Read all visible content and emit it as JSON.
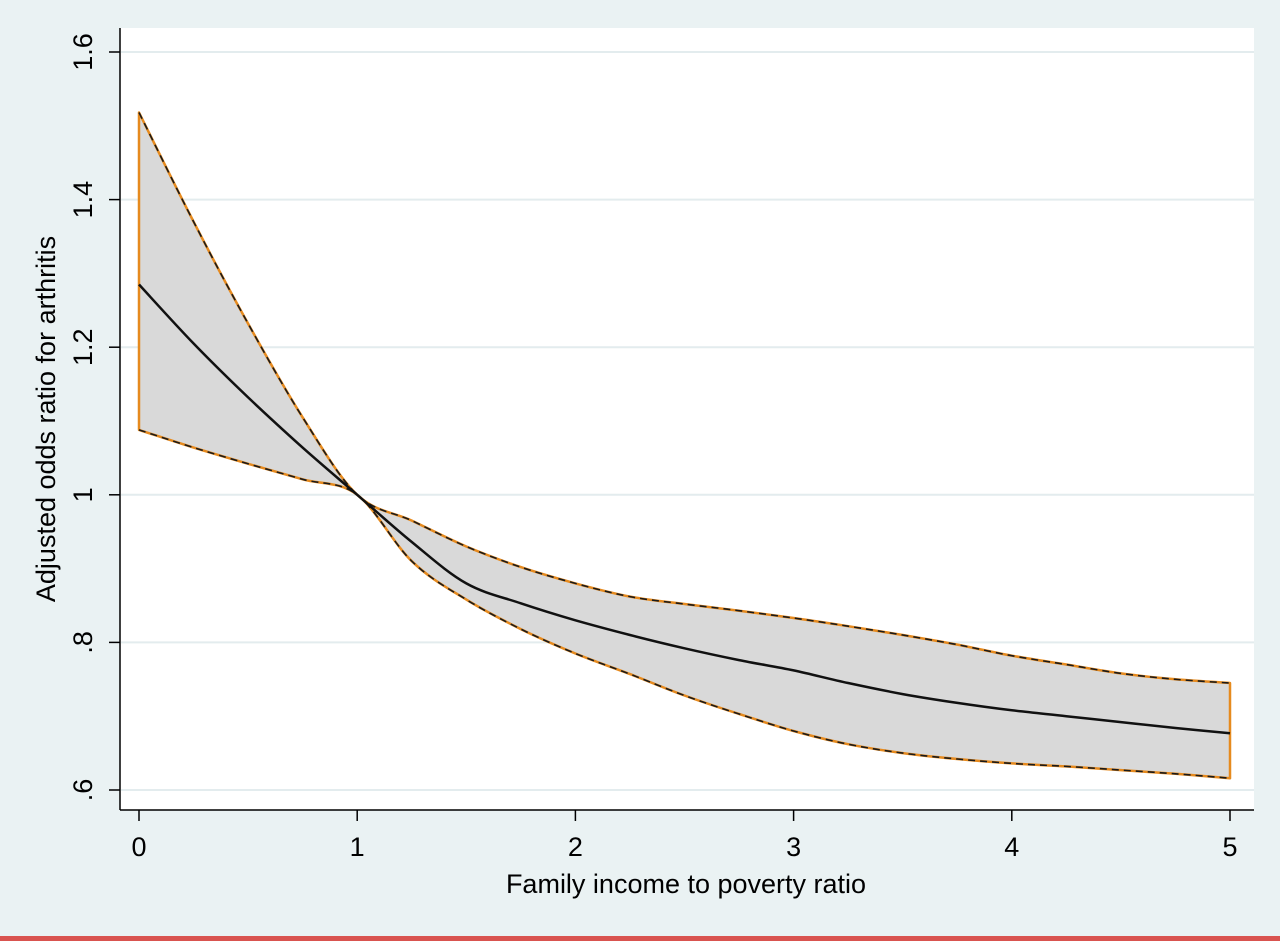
{
  "chart_data": {
    "type": "line",
    "title": "",
    "xlabel": "Family income to poverty ratio",
    "ylabel": "Adjusted odds ratio for arthritis",
    "xlim": [
      0,
      5
    ],
    "ylim": [
      0.6,
      1.6
    ],
    "x_ticks": [
      {
        "value": 0,
        "label": "0"
      },
      {
        "value": 1,
        "label": "1"
      },
      {
        "value": 2,
        "label": "2"
      },
      {
        "value": 3,
        "label": "3"
      },
      {
        "value": 4,
        "label": "4"
      },
      {
        "value": 5,
        "label": "5"
      }
    ],
    "y_ticks": [
      {
        "value": 0.6,
        "label": ".6"
      },
      {
        "value": 0.8,
        "label": ".8"
      },
      {
        "value": 1.0,
        "label": "1"
      },
      {
        "value": 1.2,
        "label": "1.2"
      },
      {
        "value": 1.4,
        "label": "1.4"
      },
      {
        "value": 1.6,
        "label": "1.6"
      }
    ],
    "grid": true,
    "x": [
      0,
      0.25,
      0.5,
      0.75,
      1,
      1.25,
      1.5,
      1.75,
      2,
      2.25,
      2.5,
      2.75,
      3,
      3.25,
      3.5,
      3.75,
      4,
      4.25,
      4.5,
      4.75,
      5
    ],
    "series": [
      {
        "role": "estimate",
        "values": [
          1.285,
          1.205,
          1.132,
          1.064,
          1.0,
          0.936,
          0.88,
          0.853,
          0.83,
          0.81,
          0.792,
          0.776,
          0.762,
          0.745,
          0.73,
          0.718,
          0.708,
          0.7,
          0.692,
          0.684,
          0.677
        ]
      },
      {
        "role": "upper_ci",
        "values": [
          1.518,
          1.37,
          1.232,
          1.105,
          1.0,
          0.965,
          0.93,
          0.902,
          0.88,
          0.862,
          0.852,
          0.843,
          0.833,
          0.822,
          0.81,
          0.797,
          0.782,
          0.77,
          0.758,
          0.75,
          0.745
        ]
      },
      {
        "role": "lower_ci",
        "values": [
          1.088,
          1.064,
          1.042,
          1.021,
          1.0,
          0.91,
          0.858,
          0.818,
          0.785,
          0.757,
          0.728,
          0.703,
          0.68,
          0.662,
          0.65,
          0.642,
          0.636,
          0.632,
          0.627,
          0.622,
          0.616
        ]
      }
    ],
    "colors": {
      "background": "#eaf2f3",
      "plot_background": "#ffffff",
      "grid": "#e3ecee",
      "band_fill": "#d9d9d9",
      "band_outline": "#e68a1e",
      "ci_dash": "#1a1a1a",
      "estimate_line": "#111111"
    }
  }
}
